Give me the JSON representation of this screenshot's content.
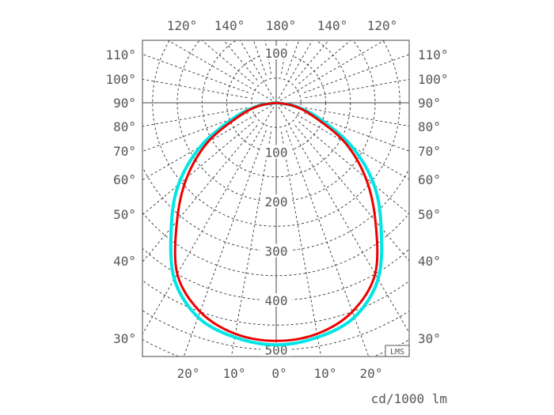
{
  "chart_data": {
    "type": "polar",
    "unit_label": "cd/1000 lm",
    "logo": "LMS",
    "radial_ticks": [
      100,
      200,
      300,
      400,
      500
    ],
    "radial_grid_step": 50,
    "angle_grid_step_deg": 10,
    "top_angle_labels": [
      "120°",
      "140°",
      "180°",
      "140°",
      "120°"
    ],
    "side_angle_labels": [
      "110°",
      "100°",
      "90°",
      "80°",
      "70°",
      "60°",
      "50°",
      "40°",
      "30°"
    ],
    "bottom_angle_labels": [
      "20°",
      "10°",
      "0°",
      "10°",
      "20°"
    ],
    "grid": true,
    "angles_deg": [
      0,
      10,
      20,
      30,
      40,
      50,
      60,
      70,
      80,
      90
    ],
    "series": [
      {
        "color": "#00e5e5",
        "values": [
          490,
          482,
          462,
          412,
          330,
          258,
          176,
          92,
          38,
          0
        ]
      },
      {
        "color": "#ee0000",
        "values": [
          482,
          475,
          450,
          400,
          312,
          236,
          160,
          80,
          35,
          0
        ]
      }
    ]
  }
}
